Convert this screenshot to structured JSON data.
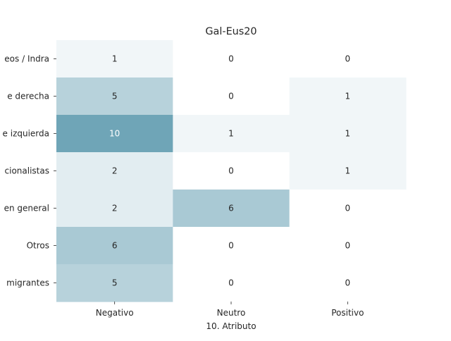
{
  "chart_data": {
    "type": "heatmap",
    "title": "Gal-Eus20",
    "xlabel": "10. Atributo",
    "ylabel": "",
    "x_categories": [
      "Negativo",
      "Neutro",
      "Positivo"
    ],
    "y_categories": [
      "eos / Indra",
      "e derecha",
      "e izquierda",
      "cionalistas",
      "en general",
      "Otros",
      "migrantes"
    ],
    "values": [
      [
        1,
        0,
        0
      ],
      [
        5,
        0,
        1
      ],
      [
        10,
        1,
        1
      ],
      [
        2,
        0,
        1
      ],
      [
        2,
        6,
        0
      ],
      [
        6,
        0,
        0
      ],
      [
        5,
        0,
        0
      ]
    ],
    "value_range": [
      0,
      10
    ],
    "colormap": {
      "low": "#ffffff",
      "high": "#6fa5b7"
    },
    "annotation_colors": {
      "dark": "#262626",
      "light": "#ffffff"
    },
    "grid": false,
    "legend": "none"
  }
}
